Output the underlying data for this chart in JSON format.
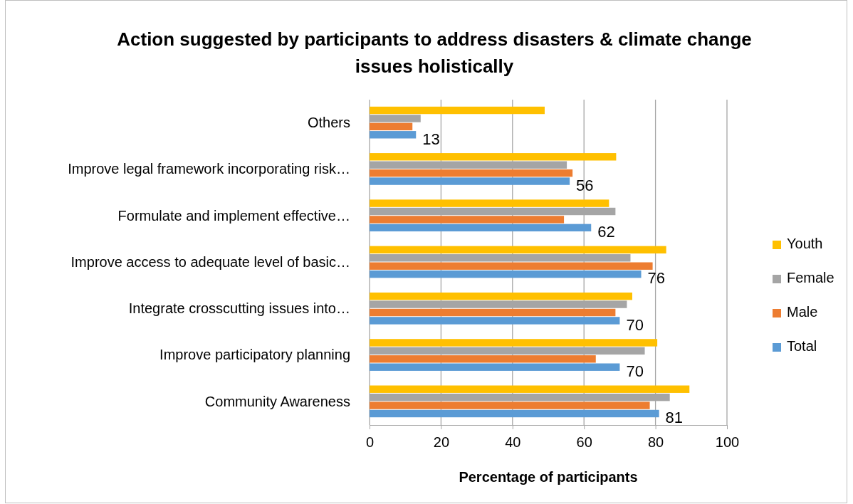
{
  "chart_data": {
    "type": "bar",
    "orientation": "horizontal",
    "title": "Action suggested by participants to address disasters & climate change issues holistically",
    "xlabel": "Percentage of participants",
    "categories": [
      "Others",
      "Improve legal framework incorporating risk…",
      "Formulate and implement effective…",
      "Improve access to adequate level of basic…",
      "Integrate crosscutting issues into…",
      "Improve participatory planning",
      "Community Awareness"
    ],
    "series": [
      {
        "name": "Youth",
        "color": "#ffc000",
        "values": [
          49,
          69,
          67,
          83,
          73.5,
          80.5,
          89.5
        ]
      },
      {
        "name": "Female",
        "color": "#a5a5a5",
        "values": [
          14.3,
          55.2,
          68.8,
          73,
          72,
          77,
          84
        ]
      },
      {
        "name": "Male",
        "color": "#ed7d31",
        "values": [
          12,
          56.8,
          54.4,
          79.2,
          68.8,
          63.3,
          78.4
        ]
      },
      {
        "name": "Total",
        "color": "#5b9bd5",
        "values": [
          13,
          56,
          62,
          76,
          70,
          70,
          81
        ],
        "value_labels": [
          "13",
          "56",
          "62",
          "76",
          "70",
          "70",
          "81"
        ]
      }
    ],
    "xlim": [
      0,
      100
    ],
    "xticks": [
      0,
      20,
      40,
      60,
      80,
      100
    ],
    "grid": "x",
    "legend": "right"
  }
}
